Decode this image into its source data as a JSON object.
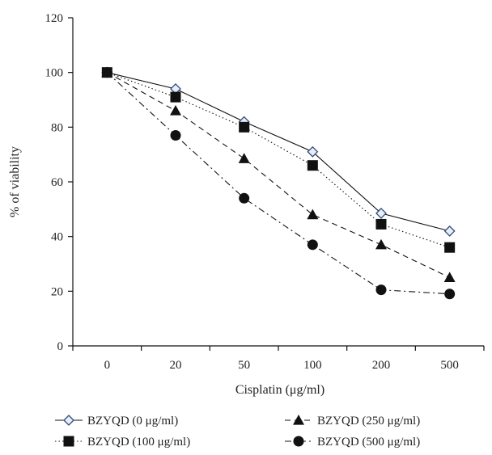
{
  "chart_data": {
    "type": "line",
    "xlabel": "Cisplatin (μg/ml)",
    "ylabel": "% of viability",
    "categories": [
      "0",
      "20",
      "50",
      "100",
      "200",
      "500"
    ],
    "ylim": [
      0,
      120
    ],
    "yticks": [
      0,
      20,
      40,
      60,
      80,
      100,
      120
    ],
    "grid": false,
    "legend_position": "bottom",
    "series": [
      {
        "name": "BZYQD (0 μg/ml)",
        "values": [
          100,
          94,
          82,
          71,
          48.5,
          42
        ],
        "marker": "diamond",
        "dash": "solid"
      },
      {
        "name": "BZYQD (100 μg/ml)",
        "values": [
          100,
          91,
          80,
          66,
          44.5,
          36
        ],
        "marker": "square",
        "dash": "dotted"
      },
      {
        "name": "BZYQD (250 μg/ml)",
        "values": [
          100,
          86,
          68.5,
          48,
          37,
          25
        ],
        "marker": "triangle",
        "dash": "dashed"
      },
      {
        "name": "BZYQD (500 μg/ml)",
        "values": [
          100,
          77,
          54,
          37,
          20.5,
          19
        ],
        "marker": "circle",
        "dash": "dashdot"
      }
    ],
    "colors": {
      "line": "#111111",
      "diamond_fill": "#e8eef7",
      "diamond_stroke": "#2c4a7a"
    }
  }
}
